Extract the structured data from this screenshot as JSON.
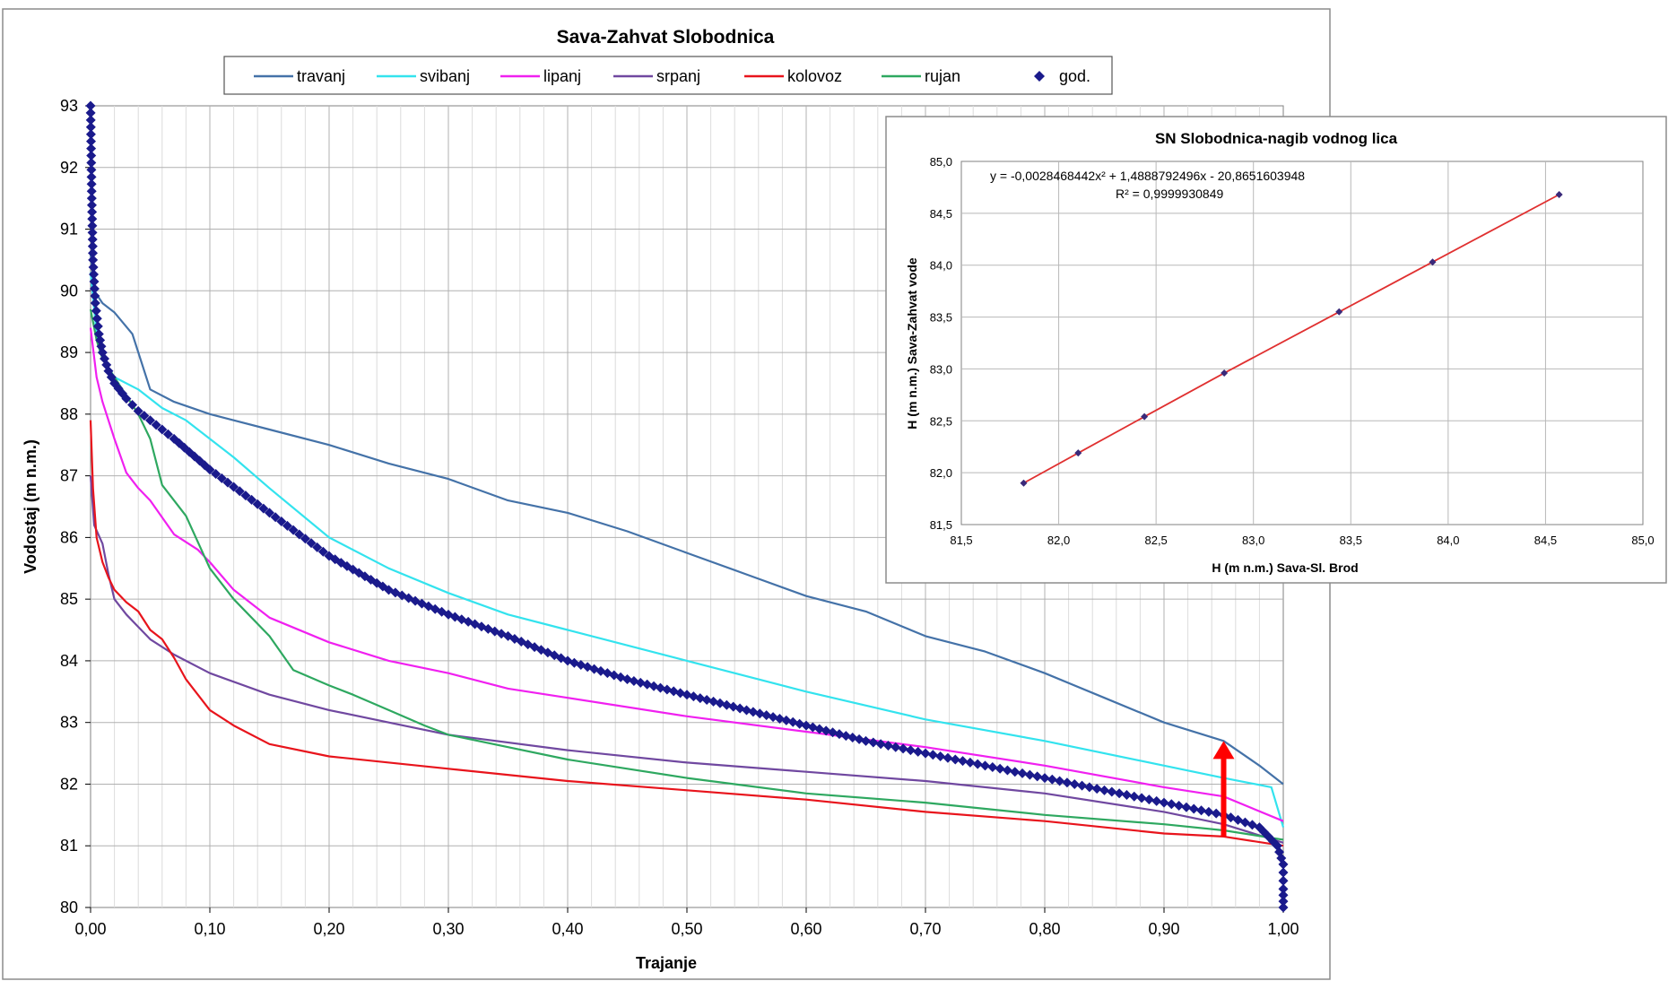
{
  "chart_data": [
    {
      "type": "line",
      "title": "Sava-Zahvat Slobodnica",
      "xlabel": "Trajanje",
      "ylabel": "Vodostaj (m n.m.)",
      "xlim": [
        0,
        1
      ],
      "ylim": [
        80,
        93
      ],
      "x_ticks": [
        "0,00",
        "0,10",
        "0,20",
        "0,30",
        "0,40",
        "0,50",
        "0,60",
        "0,70",
        "0,80",
        "0,90",
        "1,00"
      ],
      "y_ticks": [
        "80",
        "81",
        "82",
        "83",
        "84",
        "85",
        "86",
        "87",
        "88",
        "89",
        "90",
        "91",
        "92",
        "93"
      ],
      "grid": true,
      "legend_position": "top",
      "series": [
        {
          "name": "travanj",
          "color": "#4472A8",
          "marker": "none",
          "x": [
            0,
            0.003,
            0.01,
            0.02,
            0.035,
            0.05,
            0.07,
            0.1,
            0.15,
            0.2,
            0.25,
            0.3,
            0.35,
            0.4,
            0.45,
            0.5,
            0.55,
            0.6,
            0.65,
            0.7,
            0.75,
            0.8,
            0.85,
            0.9,
            0.95,
            0.98,
            1.0
          ],
          "y": [
            90.6,
            90.0,
            89.8,
            89.65,
            89.3,
            88.4,
            88.2,
            88.0,
            87.75,
            87.5,
            87.2,
            86.95,
            86.6,
            86.4,
            86.1,
            85.75,
            85.4,
            85.05,
            84.8,
            84.4,
            84.15,
            83.8,
            83.4,
            83.0,
            82.7,
            82.3,
            82.0
          ]
        },
        {
          "name": "svibanj",
          "color": "#33E3EE",
          "marker": "none",
          "x": [
            0,
            0.005,
            0.01,
            0.02,
            0.04,
            0.06,
            0.08,
            0.1,
            0.12,
            0.15,
            0.2,
            0.25,
            0.3,
            0.35,
            0.4,
            0.5,
            0.6,
            0.7,
            0.8,
            0.9,
            0.95,
            0.99,
            1.0
          ],
          "y": [
            90.3,
            89.3,
            88.9,
            88.6,
            88.4,
            88.1,
            87.9,
            87.6,
            87.3,
            86.8,
            86.0,
            85.5,
            85.1,
            84.75,
            84.5,
            84.0,
            83.5,
            83.05,
            82.7,
            82.3,
            82.1,
            81.95,
            81.3
          ]
        },
        {
          "name": "lipanj",
          "color": "#F020F0",
          "marker": "none",
          "x": [
            0,
            0.005,
            0.01,
            0.02,
            0.03,
            0.04,
            0.05,
            0.07,
            0.09,
            0.1,
            0.12,
            0.15,
            0.2,
            0.25,
            0.3,
            0.35,
            0.4,
            0.5,
            0.6,
            0.7,
            0.8,
            0.9,
            0.95,
            1.0
          ],
          "y": [
            89.4,
            88.6,
            88.2,
            87.6,
            87.05,
            86.8,
            86.6,
            86.05,
            85.8,
            85.6,
            85.15,
            84.7,
            84.3,
            84.0,
            83.8,
            83.55,
            83.4,
            83.1,
            82.85,
            82.6,
            82.3,
            81.95,
            81.8,
            81.4
          ]
        },
        {
          "name": "srpanj",
          "color": "#7048A0",
          "marker": "none",
          "x": [
            0,
            0.003,
            0.01,
            0.015,
            0.02,
            0.03,
            0.04,
            0.05,
            0.07,
            0.1,
            0.15,
            0.2,
            0.25,
            0.3,
            0.4,
            0.5,
            0.6,
            0.7,
            0.8,
            0.9,
            0.95,
            1.0
          ],
          "y": [
            87.0,
            86.2,
            85.9,
            85.4,
            85.0,
            84.75,
            84.55,
            84.35,
            84.1,
            83.8,
            83.45,
            83.2,
            83.0,
            82.8,
            82.55,
            82.35,
            82.2,
            82.05,
            81.85,
            81.55,
            81.35,
            81.05
          ]
        },
        {
          "name": "kolovoz",
          "color": "#E8141C",
          "marker": "none",
          "x": [
            0,
            0.002,
            0.005,
            0.01,
            0.015,
            0.02,
            0.03,
            0.04,
            0.05,
            0.06,
            0.07,
            0.08,
            0.1,
            0.12,
            0.15,
            0.2,
            0.3,
            0.4,
            0.5,
            0.6,
            0.7,
            0.8,
            0.9,
            0.95,
            1.0
          ],
          "y": [
            87.9,
            86.8,
            86.0,
            85.6,
            85.35,
            85.15,
            84.95,
            84.8,
            84.5,
            84.35,
            84.05,
            83.7,
            83.2,
            82.95,
            82.65,
            82.45,
            82.25,
            82.05,
            81.9,
            81.75,
            81.55,
            81.4,
            81.2,
            81.15,
            81.0
          ]
        },
        {
          "name": "rujan",
          "color": "#2EA860",
          "marker": "none",
          "x": [
            0,
            0.005,
            0.01,
            0.02,
            0.03,
            0.04,
            0.05,
            0.06,
            0.08,
            0.1,
            0.12,
            0.15,
            0.17,
            0.2,
            0.22,
            0.25,
            0.28,
            0.3,
            0.35,
            0.4,
            0.5,
            0.6,
            0.7,
            0.8,
            0.9,
            0.95,
            1.0
          ],
          "y": [
            89.7,
            89.2,
            88.9,
            88.6,
            88.3,
            88.0,
            87.6,
            86.85,
            86.35,
            85.5,
            85.0,
            84.4,
            83.85,
            83.6,
            83.45,
            83.2,
            82.95,
            82.8,
            82.6,
            82.4,
            82.1,
            81.85,
            81.7,
            81.5,
            81.35,
            81.25,
            81.1
          ]
        },
        {
          "name": "god.",
          "color": "#1A1A8C",
          "marker": "diamond",
          "x": [
            0,
            0.001,
            0.002,
            0.004,
            0.007,
            0.01,
            0.015,
            0.02,
            0.03,
            0.04,
            0.05,
            0.07,
            0.1,
            0.15,
            0.2,
            0.25,
            0.3,
            0.35,
            0.4,
            0.45,
            0.5,
            0.55,
            0.6,
            0.65,
            0.7,
            0.75,
            0.8,
            0.85,
            0.9,
            0.95,
            0.98,
            0.995,
            1.0,
            1.0,
            1.0
          ],
          "y": [
            93.0,
            91.5,
            90.5,
            89.8,
            89.3,
            89.0,
            88.7,
            88.5,
            88.25,
            88.05,
            87.9,
            87.6,
            87.1,
            86.4,
            85.7,
            85.15,
            84.75,
            84.4,
            84.0,
            83.7,
            83.45,
            83.2,
            82.95,
            82.7,
            82.5,
            82.3,
            82.1,
            81.9,
            81.7,
            81.5,
            81.3,
            81.0,
            80.7,
            80.3,
            80.0
          ]
        }
      ],
      "annotations": [
        {
          "type": "arrow",
          "color": "#FF0000",
          "x": 0.95,
          "y_from": 81.15,
          "y_to": 82.7
        }
      ]
    },
    {
      "type": "scatter",
      "title": "SN Slobodnica-nagib vodnog lica",
      "xlabel": "H (m n.m.) Sava-Sl. Brod",
      "ylabel": "H (m n.m.) Sava-Zahvat vode",
      "xlim": [
        81.5,
        85.0
      ],
      "ylim": [
        81.5,
        85.0
      ],
      "x_ticks": [
        "81,5",
        "82,0",
        "82,5",
        "83,0",
        "83,5",
        "84,0",
        "84,5",
        "85,0"
      ],
      "y_ticks": [
        "81,5",
        "82,0",
        "82,5",
        "83,0",
        "83,5",
        "84,0",
        "84,5",
        "85,0"
      ],
      "grid": true,
      "equation": "y = -0,0028468442x² + 1,4888792496x - 20,8651603948",
      "r_squared": "R² = 0,9999930849",
      "trend_color": "#E03030",
      "point_color": "#3A2A7A",
      "points": [
        {
          "x": 81.82,
          "y": 81.9
        },
        {
          "x": 82.1,
          "y": 82.19
        },
        {
          "x": 82.44,
          "y": 82.54
        },
        {
          "x": 82.85,
          "y": 82.96
        },
        {
          "x": 83.44,
          "y": 83.55
        },
        {
          "x": 83.92,
          "y": 84.03
        },
        {
          "x": 84.57,
          "y": 84.68
        }
      ]
    }
  ]
}
